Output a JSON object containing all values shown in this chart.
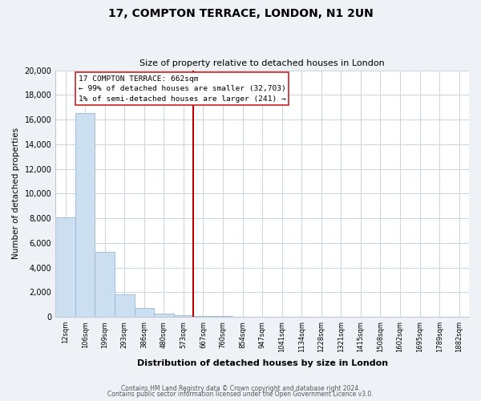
{
  "title": "17, COMPTON TERRACE, LONDON, N1 2UN",
  "subtitle": "Size of property relative to detached houses in London",
  "xlabel": "Distribution of detached houses by size in London",
  "ylabel": "Number of detached properties",
  "bar_labels": [
    "12sqm",
    "106sqm",
    "199sqm",
    "293sqm",
    "386sqm",
    "480sqm",
    "573sqm",
    "667sqm",
    "760sqm",
    "854sqm",
    "947sqm",
    "1041sqm",
    "1134sqm",
    "1228sqm",
    "1321sqm",
    "1415sqm",
    "1508sqm",
    "1602sqm",
    "1695sqm",
    "1789sqm",
    "1882sqm"
  ],
  "bar_heights": [
    8100,
    16500,
    5300,
    1800,
    750,
    300,
    150,
    100,
    50,
    0,
    0,
    0,
    0,
    0,
    0,
    0,
    0,
    0,
    0,
    0,
    0
  ],
  "bar_color": "#ccdff0",
  "bar_edge_color": "#9ab8d0",
  "vline_color": "#bb0000",
  "annotation_lines": [
    "17 COMPTON TERRACE: 662sqm",
    "← 99% of detached houses are smaller (32,703)",
    "1% of semi-detached houses are larger (241) →"
  ],
  "ylim": [
    0,
    20000
  ],
  "yticks": [
    0,
    2000,
    4000,
    6000,
    8000,
    10000,
    12000,
    14000,
    16000,
    18000,
    20000
  ],
  "footer_line1": "Contains HM Land Registry data © Crown copyright and database right 2024.",
  "footer_line2": "Contains public sector information licensed under the Open Government Licence v3.0.",
  "background_color": "#eef2f7",
  "plot_bg_color": "#ffffff",
  "grid_color": "#c8d4e0"
}
